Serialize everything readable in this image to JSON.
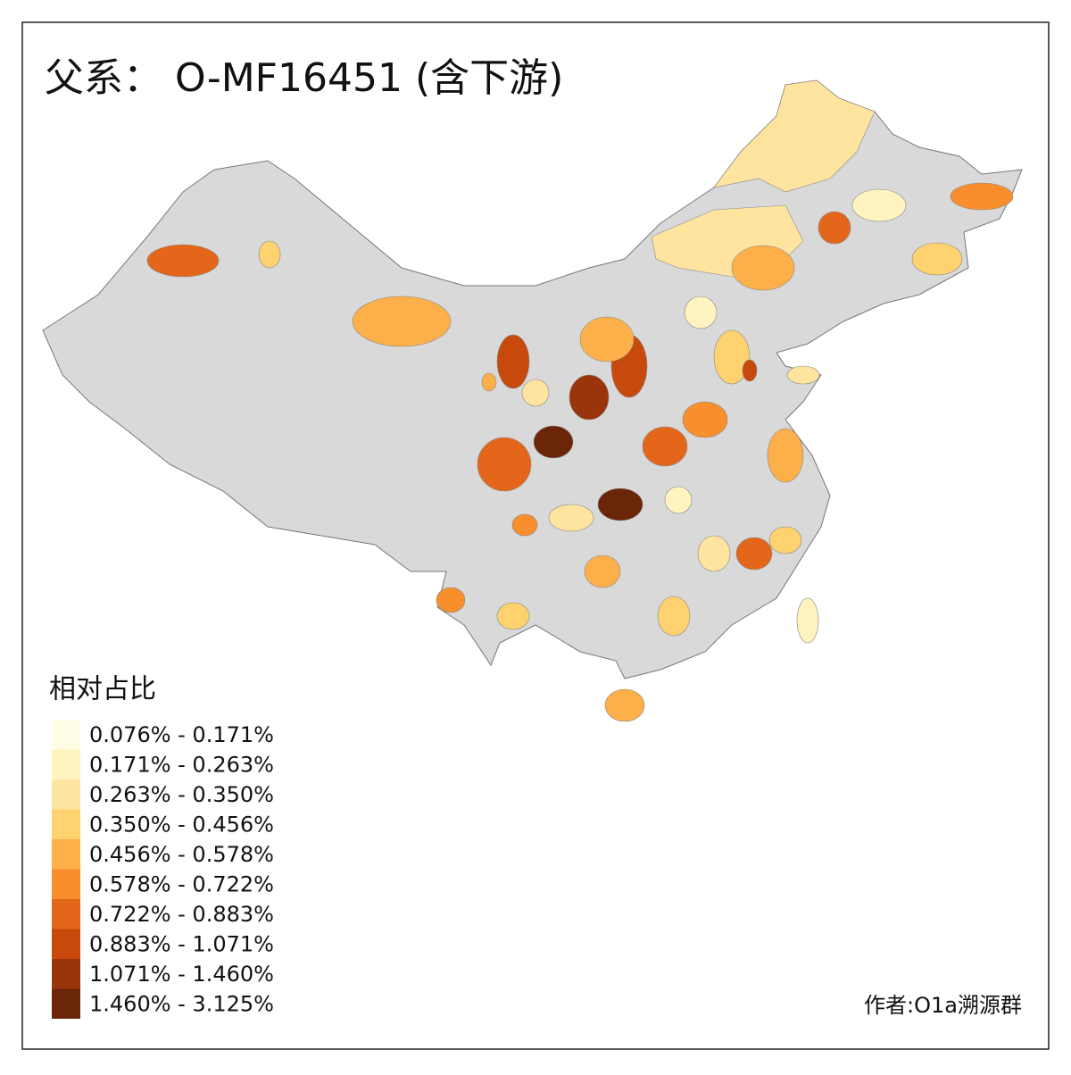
{
  "title": "父系： O-MF16451 (含下游)",
  "legend": {
    "title": "相对占比",
    "items": [
      {
        "label": "0.076% - 0.171%",
        "color": "#fffde6"
      },
      {
        "label": "0.171% - 0.263%",
        "color": "#fff3c0"
      },
      {
        "label": "0.263% - 0.350%",
        "color": "#fee49e"
      },
      {
        "label": "0.350% - 0.456%",
        "color": "#fed26e"
      },
      {
        "label": "0.456% - 0.578%",
        "color": "#fdb04a"
      },
      {
        "label": "0.578% - 0.722%",
        "color": "#f88f2c"
      },
      {
        "label": "0.722% - 0.883%",
        "color": "#e4661a"
      },
      {
        "label": "0.883% - 1.071%",
        "color": "#c8490c"
      },
      {
        "label": "1.071% - 1.460%",
        "color": "#9a340a"
      },
      {
        "label": "1.460% - 3.125%",
        "color": "#6b2508"
      }
    ]
  },
  "credit": "作者:O1a溯源群"
}
